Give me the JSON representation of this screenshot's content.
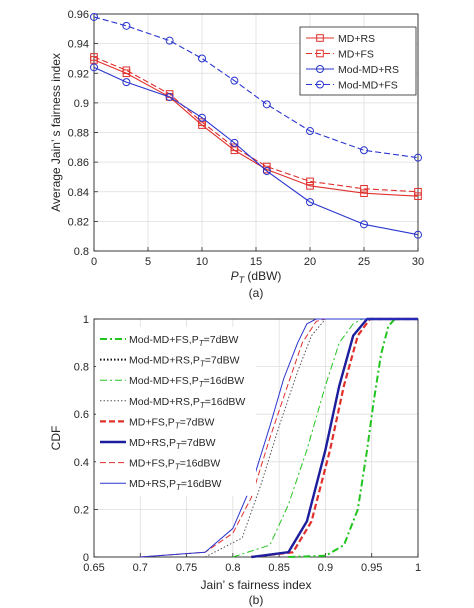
{
  "chart_data": [
    {
      "type": "line",
      "title": "",
      "caption": "(a)",
      "xlabel_main": "P",
      "xlabel_sub": "T",
      "xlabel_unit": " (dBW)",
      "ylabel": "Average Jain’ s fairness index",
      "xlim": [
        0,
        30
      ],
      "ylim": [
        0.8,
        0.96
      ],
      "xticks": [
        0,
        5,
        10,
        15,
        20,
        25,
        30
      ],
      "yticks": [
        0.8,
        0.82,
        0.84,
        0.86,
        0.88,
        0.9,
        0.92,
        0.94,
        0.96
      ],
      "ytick_labels": [
        "0.8",
        "0.82",
        "0.84",
        "0.86",
        "0.88",
        "0.9",
        "0.92",
        "0.94",
        "0.96"
      ],
      "grid": true,
      "legend_position": "top-right",
      "x": [
        0,
        3,
        7,
        10,
        13,
        16,
        20,
        25,
        30
      ],
      "series": [
        {
          "name": "MD+RS",
          "color": "#e0302c",
          "dash": "solid",
          "marker": "square",
          "values": [
            0.929,
            0.92,
            0.904,
            0.885,
            0.868,
            0.855,
            0.844,
            0.839,
            0.837
          ]
        },
        {
          "name": "MD+FS",
          "color": "#e0302c",
          "dash": "dashed",
          "marker": "square",
          "values": [
            0.931,
            0.922,
            0.906,
            0.887,
            0.87,
            0.857,
            0.847,
            0.842,
            0.84
          ]
        },
        {
          "name": "Mod-MD+RS",
          "color": "#2a35cf",
          "dash": "solid",
          "marker": "circle",
          "values": [
            0.924,
            0.914,
            0.904,
            0.89,
            0.873,
            0.854,
            0.833,
            0.818,
            0.811
          ]
        },
        {
          "name": "Mod-MD+FS",
          "color": "#2a35cf",
          "dash": "dashed",
          "marker": "circle",
          "values": [
            0.958,
            0.952,
            0.942,
            0.93,
            0.915,
            0.899,
            0.881,
            0.868,
            0.863
          ]
        }
      ]
    },
    {
      "type": "line",
      "title": "",
      "caption": "(b)",
      "xlabel": "Jain’ s fairness index",
      "ylabel": "CDF",
      "xlim": [
        0.65,
        1
      ],
      "ylim": [
        0,
        1
      ],
      "xticks": [
        0.65,
        0.7,
        0.75,
        0.8,
        0.85,
        0.9,
        0.95,
        1
      ],
      "xtick_labels": [
        "0.65",
        "0.7",
        "0.75",
        "0.8",
        "0.85",
        "0.9",
        "0.95",
        "1"
      ],
      "yticks": [
        0,
        0.2,
        0.4,
        0.6,
        0.8,
        1
      ],
      "ytick_labels": [
        "0",
        "0.2",
        "0.4",
        "0.6",
        "0.8",
        "1"
      ],
      "grid": true,
      "legend_position": "top-left",
      "series": [
        {
          "name": "Mod-MD+FS,P",
          "name_sub": "T",
          "name_suffix": "=7dBW",
          "color": "#22c41e",
          "dash": "dashdot",
          "width": 2,
          "points": [
            [
              0.86,
              0
            ],
            [
              0.9,
              0.005
            ],
            [
              0.92,
              0.05
            ],
            [
              0.935,
              0.2
            ],
            [
              0.945,
              0.45
            ],
            [
              0.952,
              0.65
            ],
            [
              0.96,
              0.85
            ],
            [
              0.968,
              0.97
            ],
            [
              0.975,
              1
            ],
            [
              1,
              1
            ]
          ]
        },
        {
          "name": "Mod-MD+RS,P",
          "name_sub": "T",
          "name_suffix": "=7dBW",
          "color": "#111111",
          "dash": "dotted",
          "width": 2,
          "points": [
            [
              0.82,
              0
            ],
            [
              0.86,
              0.02
            ],
            [
              0.88,
              0.15
            ],
            [
              0.9,
              0.45
            ],
            [
              0.915,
              0.72
            ],
            [
              0.93,
              0.93
            ],
            [
              0.945,
              1
            ],
            [
              1,
              1
            ]
          ]
        },
        {
          "name": "Mod-MD+FS,P",
          "name_sub": "T",
          "name_suffix": "=16dBW",
          "color": "#22c41e",
          "dash": "dashdot",
          "width": 1,
          "points": [
            [
              0.8,
              0
            ],
            [
              0.84,
              0.05
            ],
            [
              0.86,
              0.22
            ],
            [
              0.88,
              0.45
            ],
            [
              0.9,
              0.72
            ],
            [
              0.915,
              0.9
            ],
            [
              0.93,
              0.98
            ],
            [
              0.94,
              1
            ],
            [
              1,
              1
            ]
          ]
        },
        {
          "name": "Mod-MD+RS,P",
          "name_sub": "T",
          "name_suffix": "=16dBW",
          "color": "#555555",
          "dash": "dotted",
          "width": 1,
          "points": [
            [
              0.77,
              0
            ],
            [
              0.81,
              0.08
            ],
            [
              0.83,
              0.3
            ],
            [
              0.85,
              0.55
            ],
            [
              0.87,
              0.78
            ],
            [
              0.885,
              0.93
            ],
            [
              0.9,
              1
            ],
            [
              1,
              1
            ]
          ]
        },
        {
          "name": "MD+FS,P",
          "name_sub": "T",
          "name_suffix": "=7dBW",
          "color": "#e0302c",
          "dash": "dashed",
          "width": 2.2,
          "points": [
            [
              0.82,
              0
            ],
            [
              0.865,
              0.02
            ],
            [
              0.885,
              0.15
            ],
            [
              0.905,
              0.45
            ],
            [
              0.92,
              0.72
            ],
            [
              0.935,
              0.93
            ],
            [
              0.948,
              1
            ],
            [
              1,
              1
            ]
          ]
        },
        {
          "name": "MD+RS,P",
          "name_sub": "T",
          "name_suffix": "=7dBW",
          "color": "#1d1e9e",
          "dash": "solid",
          "width": 2.4,
          "points": [
            [
              0.82,
              0
            ],
            [
              0.86,
              0.02
            ],
            [
              0.88,
              0.15
            ],
            [
              0.9,
              0.45
            ],
            [
              0.915,
              0.72
            ],
            [
              0.93,
              0.93
            ],
            [
              0.945,
              1
            ],
            [
              1,
              1
            ]
          ]
        },
        {
          "name": "MD+FS,P",
          "name_sub": "T",
          "name_suffix": "=16dBW",
          "color": "#e0302c",
          "dash": "dashed",
          "width": 1,
          "points": [
            [
              0.7,
              0
            ],
            [
              0.77,
              0.02
            ],
            [
              0.8,
              0.1
            ],
            [
              0.82,
              0.25
            ],
            [
              0.84,
              0.5
            ],
            [
              0.86,
              0.73
            ],
            [
              0.875,
              0.9
            ],
            [
              0.89,
              0.99
            ],
            [
              0.9,
              1
            ],
            [
              1,
              1
            ]
          ]
        },
        {
          "name": "MD+RS,P",
          "name_sub": "T",
          "name_suffix": "=16dBW",
          "color": "#2a35cf",
          "dash": "solid",
          "width": 1,
          "points": [
            [
              0.7,
              0
            ],
            [
              0.77,
              0.02
            ],
            [
              0.8,
              0.12
            ],
            [
              0.82,
              0.3
            ],
            [
              0.84,
              0.55
            ],
            [
              0.855,
              0.75
            ],
            [
              0.87,
              0.9
            ],
            [
              0.88,
              0.98
            ],
            [
              0.89,
              1
            ],
            [
              1,
              1
            ]
          ]
        }
      ]
    }
  ]
}
